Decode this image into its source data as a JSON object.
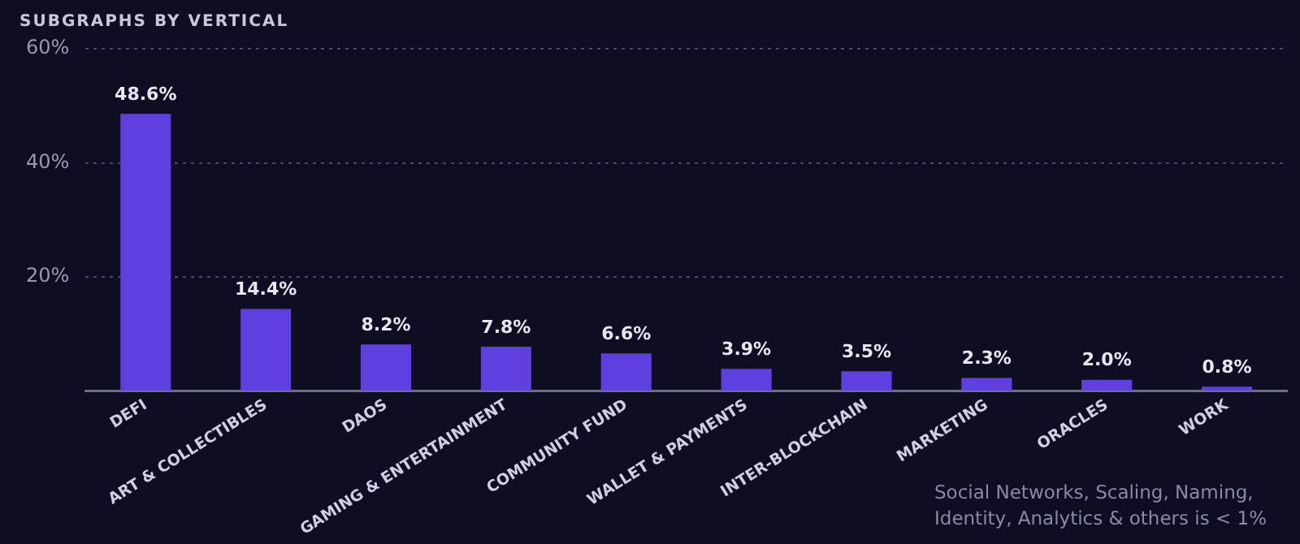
{
  "chart_data": {
    "type": "bar",
    "title": "SUBGRAPHS BY VERTICAL",
    "categories": [
      "DEFI",
      "ART & COLLECTIBLES",
      "DAOS",
      "GAMING & ENTERTAINMENT",
      "COMMUNITY FUND",
      "WALLET & PAYMENTS",
      "INTER-BLOCKCHAIN",
      "MARKETING",
      "ORACLES",
      "WORK"
    ],
    "values": [
      48.6,
      14.4,
      8.2,
      7.8,
      6.6,
      3.9,
      3.5,
      2.3,
      2.0,
      0.8
    ],
    "value_labels": [
      "48.6%",
      "14.4%",
      "8.2%",
      "7.8%",
      "6.6%",
      "3.9%",
      "3.5%",
      "2.3%",
      "2.0%",
      "0.8%"
    ],
    "color": "#5f3fe0",
    "ylim": [
      0,
      60
    ],
    "yticks": [
      {
        "value": 0,
        "label": null
      },
      {
        "value": 20,
        "label": "20%"
      },
      {
        "value": 40,
        "label": "40%"
      },
      {
        "value": 60,
        "label": "60%"
      }
    ],
    "grid": "y",
    "annotations": [
      "Social Networks, Scaling, Naming, Identity, Analytics & others is < 1%"
    ]
  }
}
